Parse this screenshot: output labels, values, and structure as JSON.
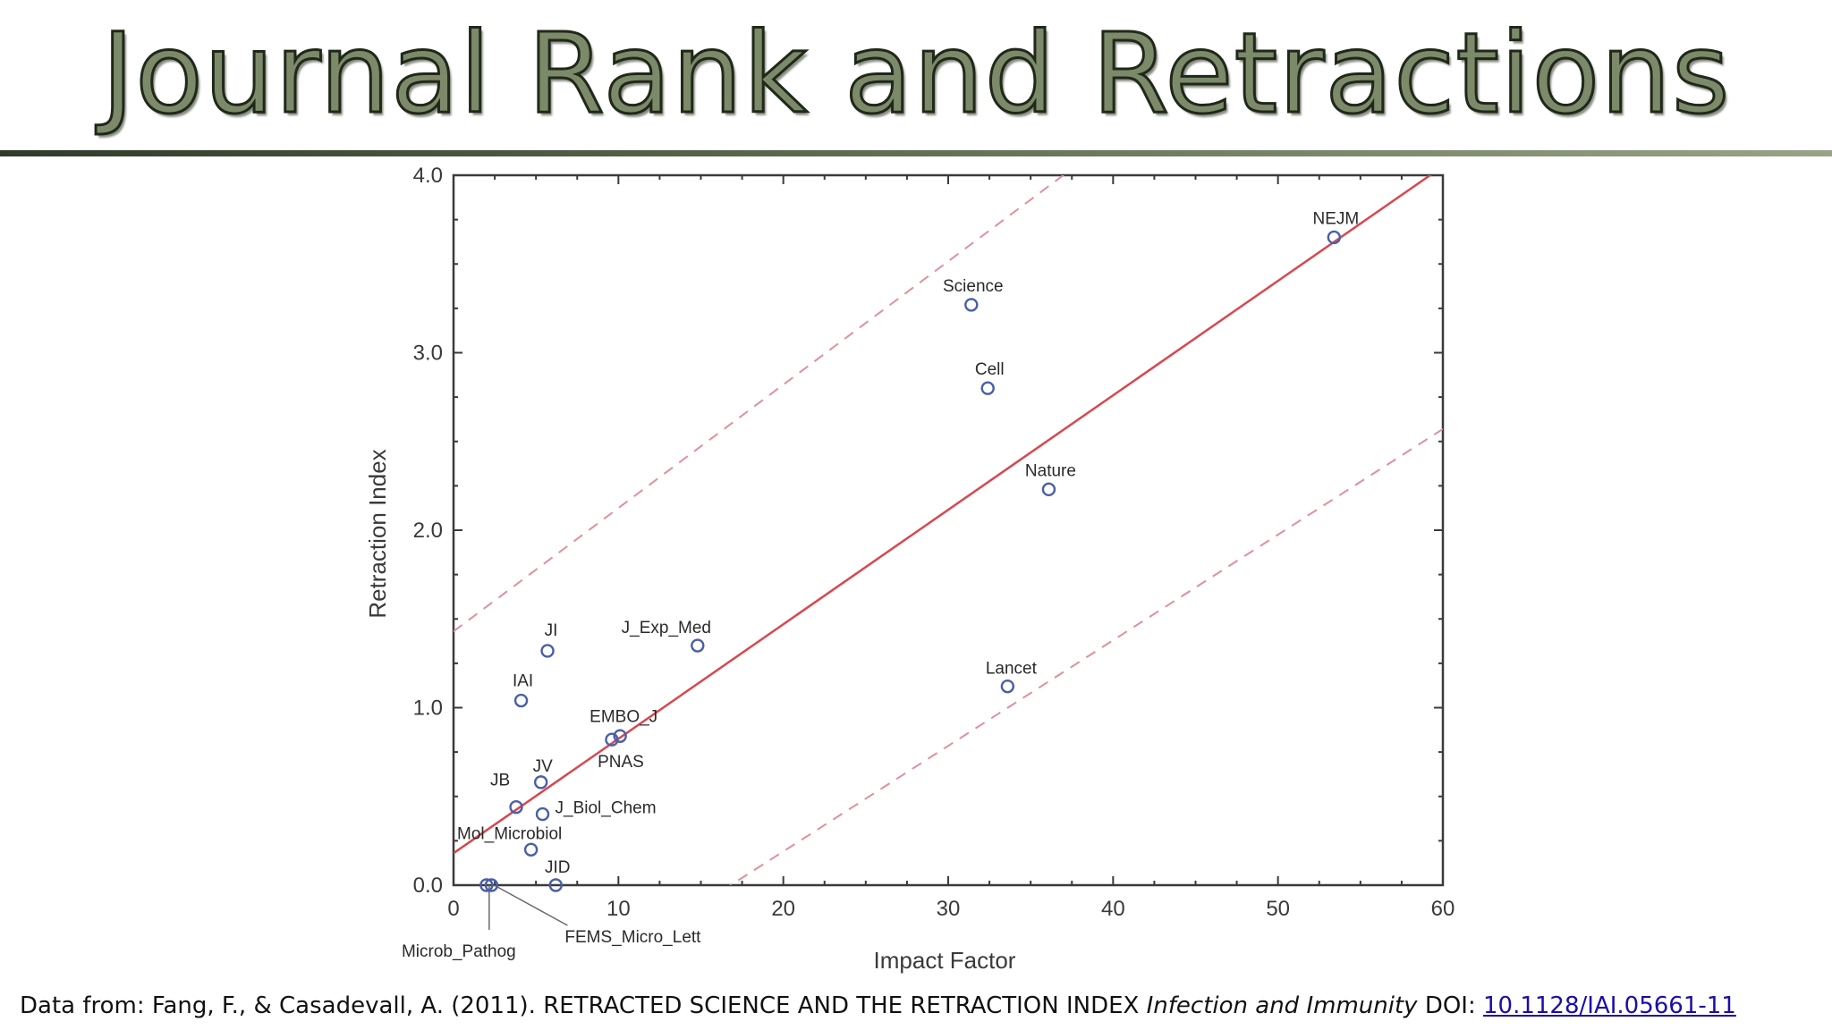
{
  "slide": {
    "title": "Journal Rank and Retractions",
    "footer": {
      "prefix": "Data from: Fang, F., & Casadevall, A. (2011). RETRACTED SCIENCE AND THE RETRACTION INDEX",
      "journal": "Infection and Immunity",
      "doi_label": "DOI:",
      "doi": "10.1128/IAI.05661-11"
    }
  },
  "colors": {
    "points": "#4a5fa8",
    "fit_line": "#d9474f",
    "confidence_band": "#e0909a",
    "axes": "#3a3a3a"
  },
  "chart_data": {
    "type": "scatter",
    "title": "",
    "xlabel": "Impact Factor",
    "ylabel": "Retraction Index",
    "xlim": [
      0,
      60
    ],
    "ylim": [
      0,
      4
    ],
    "xticks": [
      "0",
      "10",
      "20",
      "30",
      "40",
      "50",
      "60"
    ],
    "yticks": [
      "0.0",
      "1.0",
      "2.0",
      "3.0",
      "4.0"
    ],
    "grid": false,
    "points": [
      {
        "label": "NEJM",
        "x": 53.4,
        "y": 3.65
      },
      {
        "label": "Science",
        "x": 31.4,
        "y": 3.27
      },
      {
        "label": "Cell",
        "x": 32.4,
        "y": 2.8
      },
      {
        "label": "Nature",
        "x": 36.1,
        "y": 2.23
      },
      {
        "label": "Lancet",
        "x": 33.6,
        "y": 1.12
      },
      {
        "label": "J_Exp_Med",
        "x": 14.8,
        "y": 1.35
      },
      {
        "label": "JI",
        "x": 5.7,
        "y": 1.32
      },
      {
        "label": "IAI",
        "x": 4.1,
        "y": 1.04
      },
      {
        "label": "EMBO_J",
        "x": 10.1,
        "y": 0.84
      },
      {
        "label": "PNAS",
        "x": 9.6,
        "y": 0.82
      },
      {
        "label": "JV",
        "x": 5.3,
        "y": 0.58
      },
      {
        "label": "JB",
        "x": 3.8,
        "y": 0.44
      },
      {
        "label": "J_Biol_Chem",
        "x": 5.4,
        "y": 0.4
      },
      {
        "label": "Mol_Microbiol",
        "x": 4.7,
        "y": 0.2
      },
      {
        "label": "JID",
        "x": 6.2,
        "y": 0.0
      },
      {
        "label": "Microb_Pathog",
        "x": 2.0,
        "y": 0.0
      },
      {
        "label": "FEMS_Micro_Lett",
        "x": 2.3,
        "y": 0.0
      }
    ],
    "fit_line": {
      "intercept": 0.18,
      "slope": 0.0645
    },
    "confidence_band": {
      "upper": {
        "intercept": 1.43,
        "slope": 0.0695
      },
      "lower": {
        "intercept": -1.0,
        "slope": 0.0595
      }
    }
  }
}
